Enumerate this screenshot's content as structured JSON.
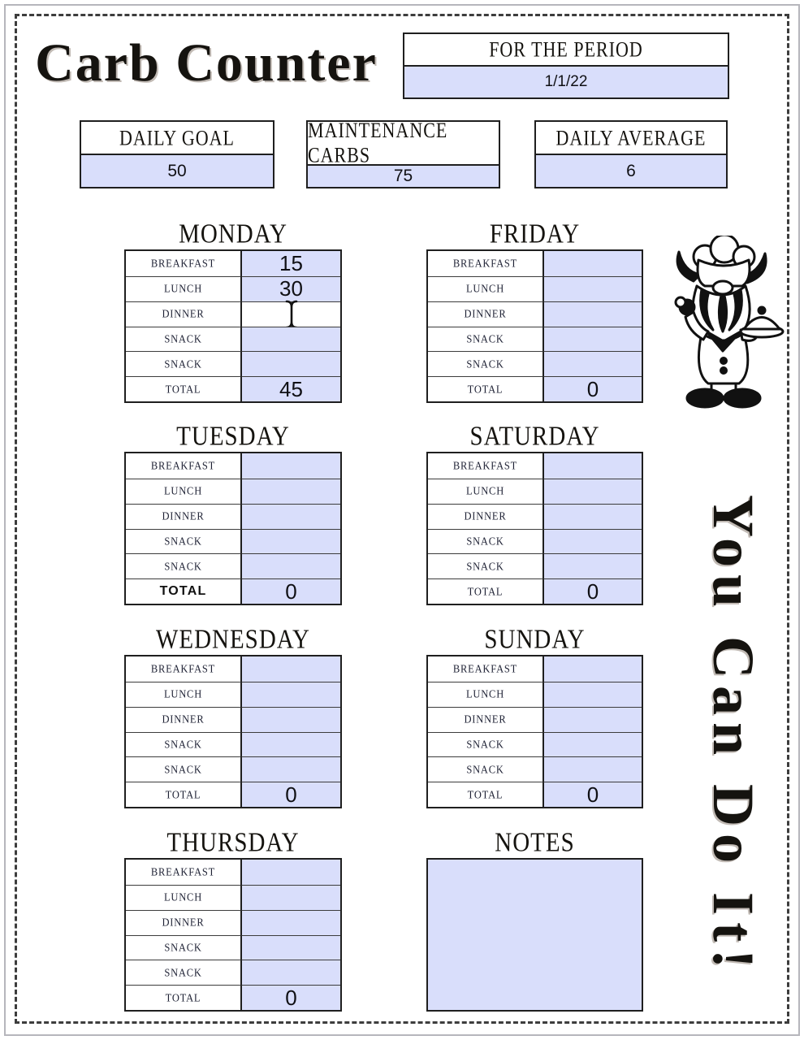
{
  "title": "Carb Counter",
  "period": {
    "label": "FOR THE PERIOD",
    "value": "1/1/22"
  },
  "stats": [
    {
      "id": "daily-goal",
      "label": "DAILY GOAL",
      "value": "50"
    },
    {
      "id": "maintenance-carbs",
      "label": "MAINTENANCE CARBS",
      "value": "75"
    },
    {
      "id": "daily-average",
      "label": "DAILY AVERAGE",
      "value": "6"
    }
  ],
  "meal_labels": [
    "BREAKFAST",
    "LUNCH",
    "DINNER",
    "SNACK",
    "SNACK"
  ],
  "total_label": "TOTAL",
  "days": [
    {
      "name": "MONDAY",
      "values": [
        "15",
        "30",
        "",
        "",
        ""
      ],
      "total": "45",
      "active_cell_index": 2,
      "total_label_style": "decorative"
    },
    {
      "name": "TUESDAY",
      "values": [
        "",
        "",
        "",
        "",
        ""
      ],
      "total": "0",
      "total_label_style": "bold-sans"
    },
    {
      "name": "WEDNESDAY",
      "values": [
        "",
        "",
        "",
        "",
        ""
      ],
      "total": "0",
      "total_label_style": "decorative"
    },
    {
      "name": "THURSDAY",
      "values": [
        "",
        "",
        "",
        "",
        ""
      ],
      "total": "0",
      "total_label_style": "decorative"
    },
    {
      "name": "FRIDAY",
      "values": [
        "",
        "",
        "",
        "",
        ""
      ],
      "total": "0",
      "total_label_style": "decorative"
    },
    {
      "name": "SATURDAY",
      "values": [
        "",
        "",
        "",
        "",
        ""
      ],
      "total": "0",
      "total_label_style": "decorative"
    },
    {
      "name": "SUNDAY",
      "values": [
        "",
        "",
        "",
        "",
        ""
      ],
      "total": "0",
      "total_label_style": "decorative"
    }
  ],
  "notes": {
    "label": "NOTES",
    "value": ""
  },
  "motivation_text": "You Can Do It!",
  "icons": {
    "chef": "chef-icon",
    "text_cursor": "text-cursor-icon"
  },
  "colors": {
    "cell_fill": "#d9defb",
    "table_border": "#1f1f1f",
    "deco_text": "#15130f"
  }
}
